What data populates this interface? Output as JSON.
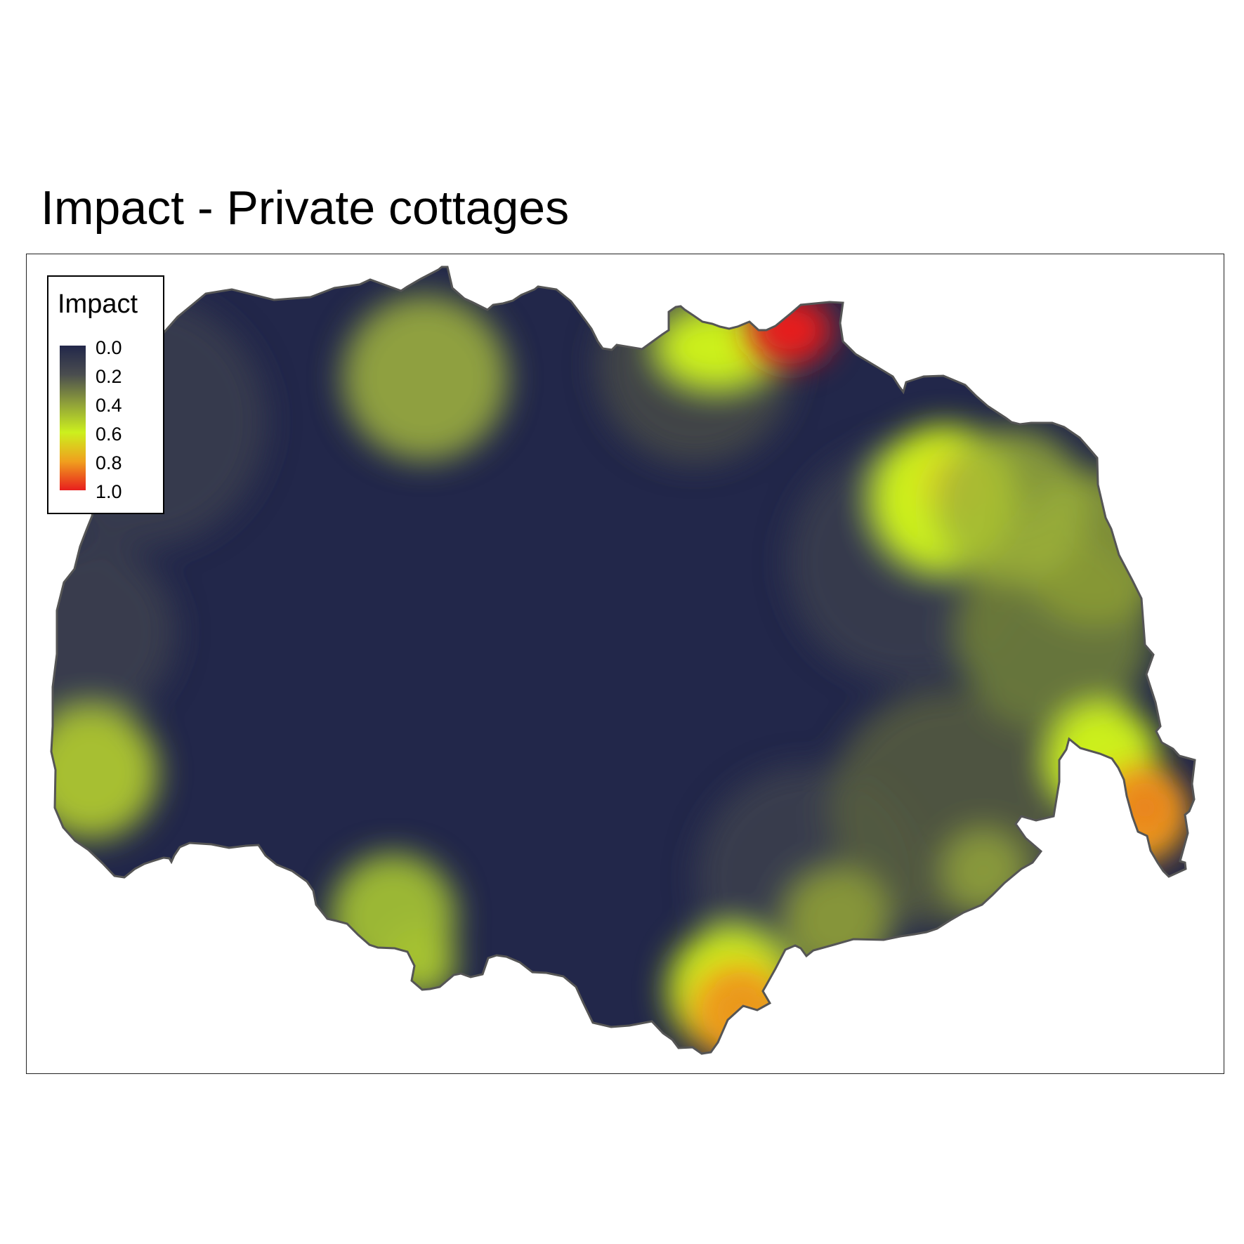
{
  "title": "Impact - Private cottages",
  "legend": {
    "title": "Impact",
    "ticks": [
      "0.0",
      "0.2",
      "0.4",
      "0.6",
      "0.8",
      "1.0"
    ],
    "palette": [
      "#22274a",
      "#4a4d4f",
      "#8fa03a",
      "#ccf01e",
      "#f0a01e",
      "#e81e1e"
    ]
  },
  "map": {
    "type": "raster heatmap",
    "variable": "Impact",
    "range": [
      0.0,
      1.0
    ],
    "background_color": "#22274a",
    "outline_color": "#555555",
    "hotspots": [
      {
        "area": "north-west",
        "impact": 0.4
      },
      {
        "area": "north, red hotspot",
        "impact": 1.0
      },
      {
        "area": "north-east",
        "impact": 0.65
      },
      {
        "area": "east",
        "impact": 0.6
      },
      {
        "area": "south-east",
        "impact": 0.85
      },
      {
        "area": "west",
        "impact": 0.45
      },
      {
        "area": "south-west",
        "impact": 0.45
      },
      {
        "area": "south",
        "impact": 0.85
      }
    ]
  }
}
